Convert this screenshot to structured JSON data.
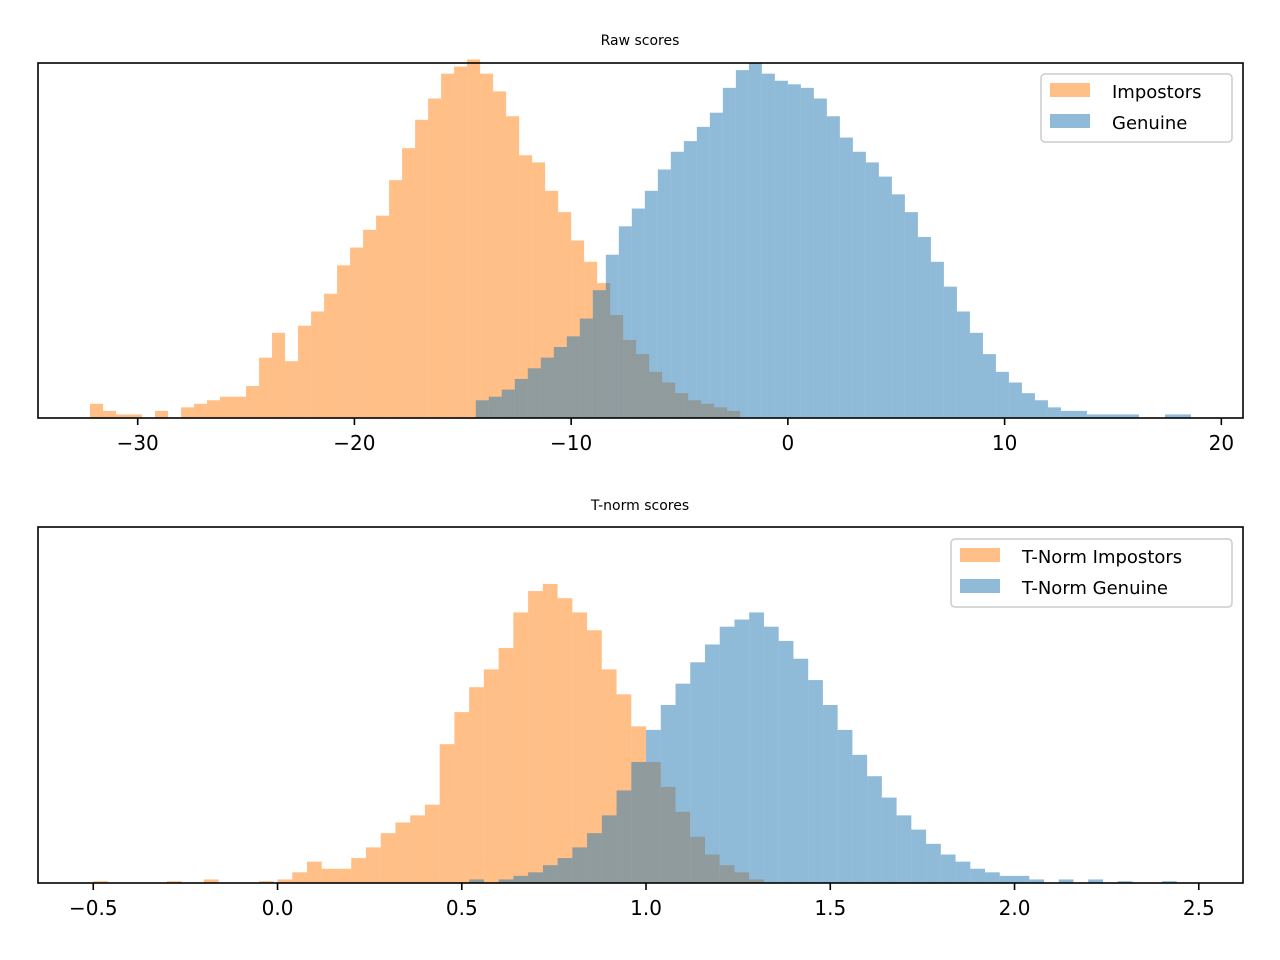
{
  "colors": {
    "impostor": "#ff7f0e",
    "genuine": "#1f77b4",
    "bar_alpha": 0.5
  },
  "chart_data": [
    {
      "type": "histogram",
      "title": "Raw scores",
      "xlabel": "",
      "ylabel": "",
      "xlim": [
        -34.6,
        21
      ],
      "xticks": [
        -30,
        -20,
        -10,
        0,
        10,
        20
      ],
      "xtick_labels": [
        "−30",
        "−20",
        "−10",
        "0",
        "10",
        "20"
      ],
      "yticks_hidden": true,
      "ylim": [
        0,
        100
      ],
      "legend_position": "top-right",
      "series": [
        {
          "name": "Impostors",
          "color_key": "impostor",
          "bins": [
            [
              -32.2,
              -31.6,
              4
            ],
            [
              -31.6,
              -31.0,
              2
            ],
            [
              -31.0,
              -30.4,
              1
            ],
            [
              -30.4,
              -29.8,
              1
            ],
            [
              -29.2,
              -28.6,
              2
            ],
            [
              -28.0,
              -27.4,
              3
            ],
            [
              -27.4,
              -26.8,
              4
            ],
            [
              -26.8,
              -26.2,
              5
            ],
            [
              -26.2,
              -25.6,
              6
            ],
            [
              -25.6,
              -25.0,
              6
            ],
            [
              -25.0,
              -24.4,
              9
            ],
            [
              -24.4,
              -23.8,
              17
            ],
            [
              -23.8,
              -23.2,
              24
            ],
            [
              -23.2,
              -22.6,
              16
            ],
            [
              -22.6,
              -22.0,
              26
            ],
            [
              -22.0,
              -21.4,
              30
            ],
            [
              -21.4,
              -20.8,
              35
            ],
            [
              -20.8,
              -20.2,
              43
            ],
            [
              -20.2,
              -19.6,
              48
            ],
            [
              -19.6,
              -19.0,
              53
            ],
            [
              -19.0,
              -18.4,
              57
            ],
            [
              -18.4,
              -17.8,
              67
            ],
            [
              -17.8,
              -17.2,
              76
            ],
            [
              -17.2,
              -16.6,
              84
            ],
            [
              -16.6,
              -16.0,
              90
            ],
            [
              -16.0,
              -15.4,
              97
            ],
            [
              -15.4,
              -14.8,
              99
            ],
            [
              -14.8,
              -14.2,
              101
            ],
            [
              -14.2,
              -13.6,
              97
            ],
            [
              -13.6,
              -13.0,
              92
            ],
            [
              -13.0,
              -12.4,
              85
            ],
            [
              -12.4,
              -11.8,
              74
            ],
            [
              -11.8,
              -11.2,
              72
            ],
            [
              -11.2,
              -10.6,
              64
            ],
            [
              -10.6,
              -10.0,
              58
            ],
            [
              -10.0,
              -9.4,
              50
            ],
            [
              -9.4,
              -8.8,
              44
            ],
            [
              -8.8,
              -8.2,
              38
            ],
            [
              -8.2,
              -7.6,
              29
            ],
            [
              -7.6,
              -7.0,
              22
            ],
            [
              -7.0,
              -6.4,
              18
            ],
            [
              -6.4,
              -5.8,
              13
            ],
            [
              -5.8,
              -5.2,
              10
            ],
            [
              -5.2,
              -4.6,
              7
            ],
            [
              -4.6,
              -4.0,
              5
            ],
            [
              -4.0,
              -3.4,
              4
            ],
            [
              -3.4,
              -2.8,
              3
            ],
            [
              -2.8,
              -2.2,
              2
            ]
          ]
        },
        {
          "name": "Genuine",
          "color_key": "genuine",
          "bins": [
            [
              -14.4,
              -13.8,
              5
            ],
            [
              -13.8,
              -13.2,
              6
            ],
            [
              -13.2,
              -12.6,
              8
            ],
            [
              -12.6,
              -12.0,
              11
            ],
            [
              -12.0,
              -11.4,
              14
            ],
            [
              -11.4,
              -10.8,
              17
            ],
            [
              -10.8,
              -10.2,
              20
            ],
            [
              -10.2,
              -9.6,
              23
            ],
            [
              -9.6,
              -9.0,
              28
            ],
            [
              -9.0,
              -8.4,
              36
            ],
            [
              -8.4,
              -7.8,
              46
            ],
            [
              -7.8,
              -7.2,
              54
            ],
            [
              -7.2,
              -6.6,
              59
            ],
            [
              -6.6,
              -6.0,
              64
            ],
            [
              -6.0,
              -5.4,
              70
            ],
            [
              -5.4,
              -4.8,
              75
            ],
            [
              -4.8,
              -4.2,
              78
            ],
            [
              -4.2,
              -3.6,
              82
            ],
            [
              -3.6,
              -3.0,
              86
            ],
            [
              -3.0,
              -2.4,
              93
            ],
            [
              -2.4,
              -1.8,
              98
            ],
            [
              -1.8,
              -1.2,
              100
            ],
            [
              -1.2,
              -0.6,
              97
            ],
            [
              -0.6,
              0.0,
              95
            ],
            [
              0.0,
              0.6,
              94
            ],
            [
              0.6,
              1.2,
              93
            ],
            [
              1.2,
              1.8,
              90
            ],
            [
              1.8,
              2.4,
              85
            ],
            [
              2.4,
              3.0,
              79
            ],
            [
              3.0,
              3.6,
              75
            ],
            [
              3.6,
              4.2,
              72
            ],
            [
              4.2,
              4.8,
              68
            ],
            [
              4.8,
              5.4,
              63
            ],
            [
              5.4,
              6.0,
              58
            ],
            [
              6.0,
              6.6,
              51
            ],
            [
              6.6,
              7.2,
              44
            ],
            [
              7.2,
              7.8,
              37
            ],
            [
              7.8,
              8.4,
              30
            ],
            [
              8.4,
              9.0,
              24
            ],
            [
              9.0,
              9.6,
              18
            ],
            [
              9.6,
              10.2,
              13
            ],
            [
              10.2,
              10.8,
              10
            ],
            [
              10.8,
              11.4,
              7
            ],
            [
              11.4,
              12.0,
              5
            ],
            [
              12.0,
              12.6,
              3
            ],
            [
              12.6,
              13.2,
              2
            ],
            [
              13.2,
              13.8,
              2
            ],
            [
              13.8,
              14.4,
              1
            ],
            [
              14.4,
              15.0,
              1
            ],
            [
              15.0,
              15.6,
              1
            ],
            [
              15.6,
              16.2,
              1
            ],
            [
              17.4,
              18.0,
              1
            ],
            [
              18.0,
              18.6,
              1
            ]
          ]
        }
      ]
    },
    {
      "type": "histogram",
      "title": "T-norm scores",
      "xlabel": "",
      "ylabel": "",
      "xlim": [
        -0.65,
        2.62
      ],
      "xticks": [
        -0.5,
        0.0,
        0.5,
        1.0,
        1.5,
        2.0,
        2.5
      ],
      "xtick_labels": [
        "−0.5",
        "0.0",
        "0.5",
        "1.0",
        "1.5",
        "2.0",
        "2.5"
      ],
      "yticks_hidden": true,
      "ylim": [
        0,
        100
      ],
      "legend_position": "top-right",
      "series": [
        {
          "name": "T-Norm Impostors",
          "color_key": "impostor",
          "bins": [
            [
              -0.5,
              -0.46,
              0.5
            ],
            [
              -0.3,
              -0.26,
              0.5
            ],
            [
              -0.2,
              -0.16,
              1
            ],
            [
              -0.05,
              -0.01,
              0.5
            ],
            [
              0.0,
              0.04,
              1
            ],
            [
              0.04,
              0.08,
              3
            ],
            [
              0.08,
              0.12,
              6
            ],
            [
              0.12,
              0.16,
              4
            ],
            [
              0.16,
              0.2,
              4
            ],
            [
              0.2,
              0.24,
              7
            ],
            [
              0.24,
              0.28,
              10
            ],
            [
              0.28,
              0.32,
              14
            ],
            [
              0.32,
              0.36,
              17
            ],
            [
              0.36,
              0.4,
              19
            ],
            [
              0.4,
              0.44,
              22
            ],
            [
              0.44,
              0.48,
              39
            ],
            [
              0.48,
              0.52,
              48
            ],
            [
              0.52,
              0.56,
              55
            ],
            [
              0.56,
              0.6,
              60
            ],
            [
              0.6,
              0.64,
              66
            ],
            [
              0.64,
              0.68,
              76
            ],
            [
              0.68,
              0.72,
              82
            ],
            [
              0.72,
              0.76,
              84
            ],
            [
              0.76,
              0.8,
              80
            ],
            [
              0.8,
              0.84,
              76
            ],
            [
              0.84,
              0.88,
              71
            ],
            [
              0.88,
              0.92,
              60
            ],
            [
              0.92,
              0.96,
              53
            ],
            [
              0.96,
              1.0,
              44
            ],
            [
              1.0,
              1.04,
              34
            ],
            [
              1.04,
              1.08,
              27
            ],
            [
              1.08,
              1.12,
              20
            ],
            [
              1.12,
              1.16,
              13
            ],
            [
              1.16,
              1.2,
              8
            ],
            [
              1.2,
              1.24,
              5
            ],
            [
              1.24,
              1.28,
              3
            ],
            [
              1.28,
              1.32,
              1
            ]
          ]
        },
        {
          "name": "T-Norm Genuine",
          "color_key": "genuine",
          "bins": [
            [
              0.52,
              0.56,
              1
            ],
            [
              0.6,
              0.64,
              1
            ],
            [
              0.64,
              0.68,
              2
            ],
            [
              0.68,
              0.72,
              3
            ],
            [
              0.72,
              0.76,
              5
            ],
            [
              0.76,
              0.8,
              7
            ],
            [
              0.8,
              0.84,
              10
            ],
            [
              0.84,
              0.88,
              14
            ],
            [
              0.88,
              0.92,
              19
            ],
            [
              0.92,
              0.96,
              26
            ],
            [
              0.96,
              1.0,
              34
            ],
            [
              1.0,
              1.04,
              43
            ],
            [
              1.04,
              1.08,
              50
            ],
            [
              1.08,
              1.12,
              56
            ],
            [
              1.12,
              1.16,
              62
            ],
            [
              1.16,
              1.2,
              67
            ],
            [
              1.2,
              1.24,
              72
            ],
            [
              1.24,
              1.28,
              74
            ],
            [
              1.28,
              1.32,
              76
            ],
            [
              1.32,
              1.36,
              72
            ],
            [
              1.36,
              1.4,
              68
            ],
            [
              1.4,
              1.44,
              63
            ],
            [
              1.44,
              1.48,
              57
            ],
            [
              1.48,
              1.52,
              50
            ],
            [
              1.52,
              1.56,
              43
            ],
            [
              1.56,
              1.6,
              36
            ],
            [
              1.6,
              1.64,
              30
            ],
            [
              1.64,
              1.68,
              24
            ],
            [
              1.68,
              1.72,
              19
            ],
            [
              1.72,
              1.76,
              15
            ],
            [
              1.76,
              1.8,
              11
            ],
            [
              1.8,
              1.84,
              8
            ],
            [
              1.84,
              1.88,
              6
            ],
            [
              1.88,
              1.92,
              4
            ],
            [
              1.92,
              1.96,
              3
            ],
            [
              1.96,
              2.0,
              2
            ],
            [
              2.0,
              2.04,
              2
            ],
            [
              2.04,
              2.08,
              1
            ],
            [
              2.12,
              2.16,
              1
            ],
            [
              2.2,
              2.24,
              1
            ],
            [
              2.28,
              2.32,
              0.5
            ],
            [
              2.4,
              2.44,
              0.5
            ]
          ]
        }
      ]
    }
  ]
}
